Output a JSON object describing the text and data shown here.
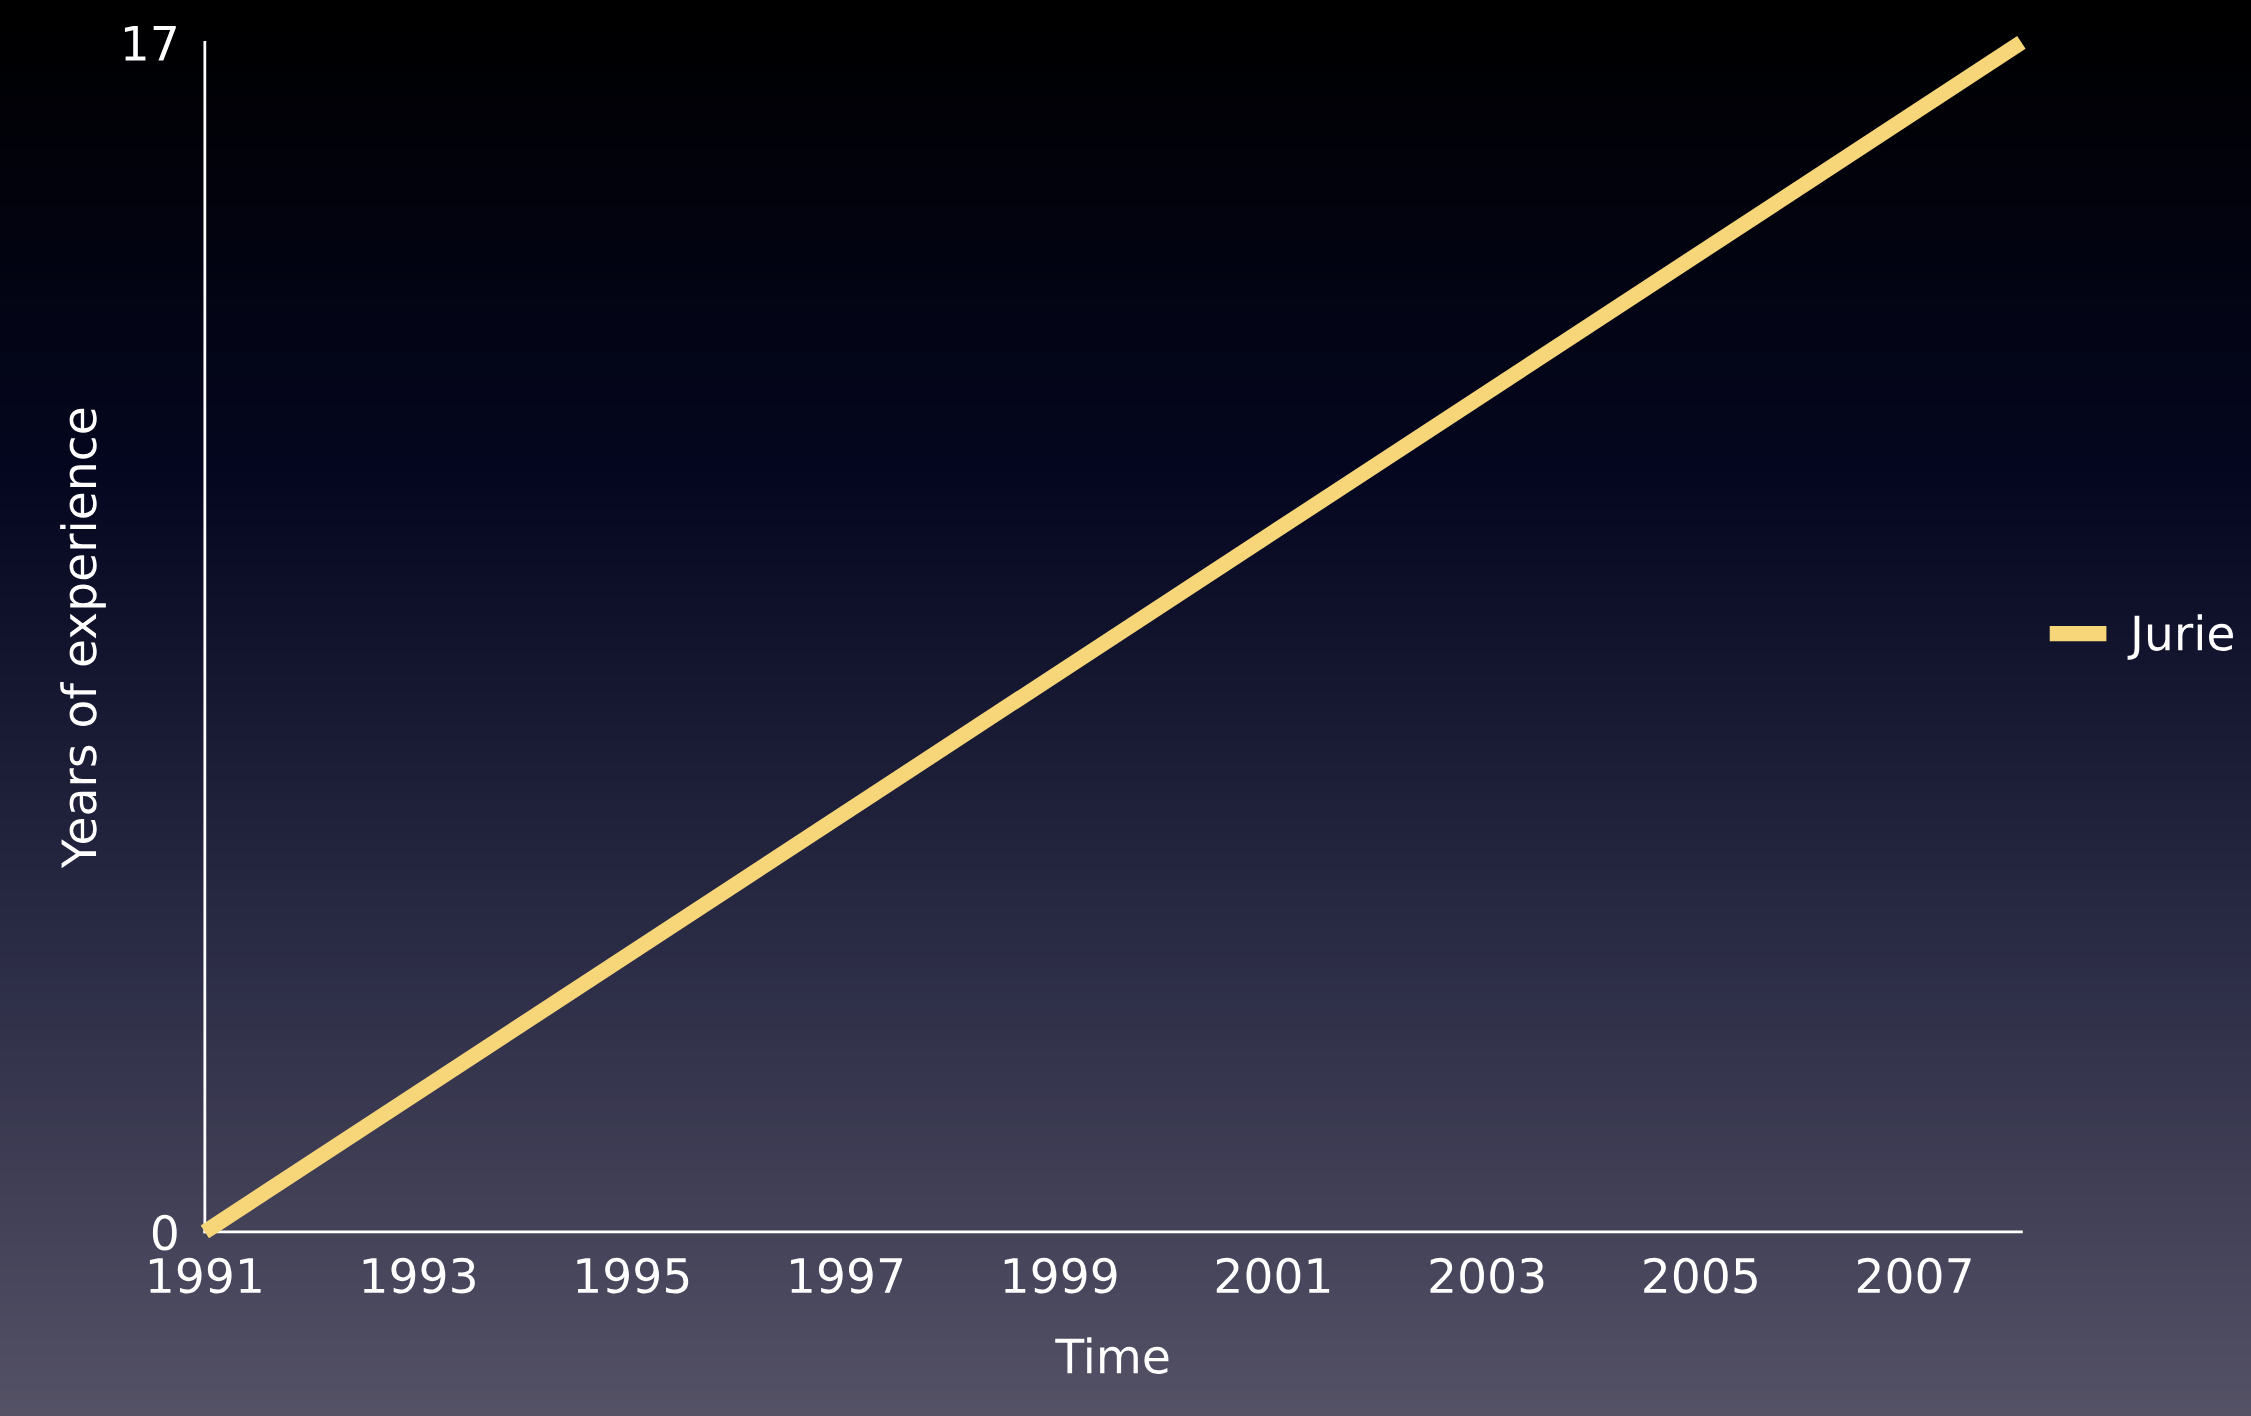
{
  "chart_data": {
    "type": "line",
    "xlabel": "Time",
    "ylabel": "Years of experience",
    "x": [
      1991,
      2008
    ],
    "series": [
      {
        "name": "Jurie",
        "color": "#f7d67a",
        "values": [
          0,
          17
        ]
      }
    ],
    "xlim": [
      1991,
      2008
    ],
    "ylim": [
      0,
      17
    ],
    "xticks": [
      1991,
      1993,
      1995,
      1997,
      1999,
      2001,
      2003,
      2005,
      2007
    ],
    "yticks": [
      0,
      17
    ],
    "grid": false,
    "legend": "right",
    "marker": "none",
    "line_style": "solid"
  }
}
